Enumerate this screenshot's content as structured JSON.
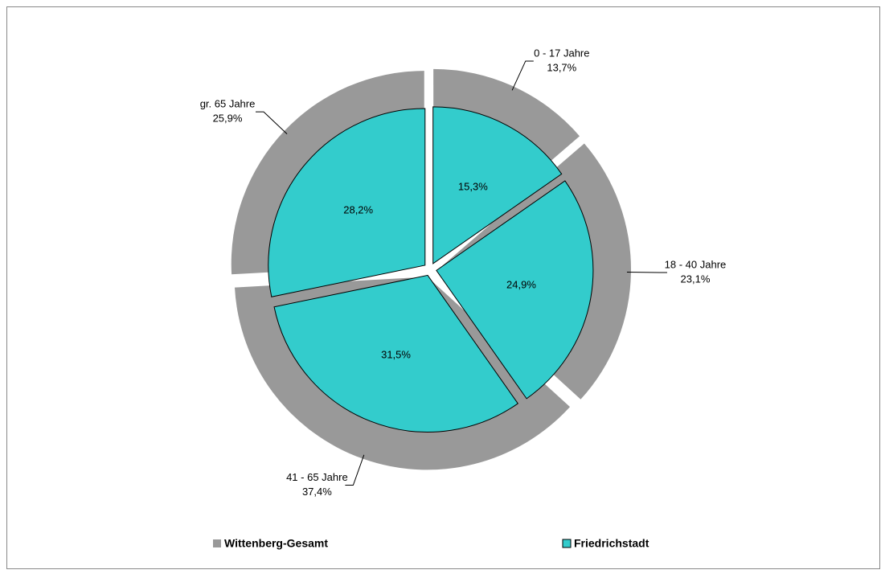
{
  "chart_data": {
    "type": "pie",
    "categories": [
      "0 - 17 Jahre",
      "18 - 40 Jahre",
      "41 - 65 Jahre",
      "gr. 65 Jahre"
    ],
    "series": [
      {
        "name": "Wittenberg-Gesamt",
        "color": "#999999",
        "values": [
          13.7,
          23.1,
          37.4,
          25.9
        ],
        "value_labels": [
          "13,7%",
          "23,1%",
          "37,4%",
          "25,9%"
        ]
      },
      {
        "name": "Friedrichstadt",
        "color": "#33cccc",
        "values": [
          15.3,
          24.9,
          31.5,
          28.2
        ],
        "value_labels": [
          "15,3%",
          "24,9%",
          "31,5%",
          "28,2%"
        ]
      }
    ],
    "legend": "bottom"
  }
}
